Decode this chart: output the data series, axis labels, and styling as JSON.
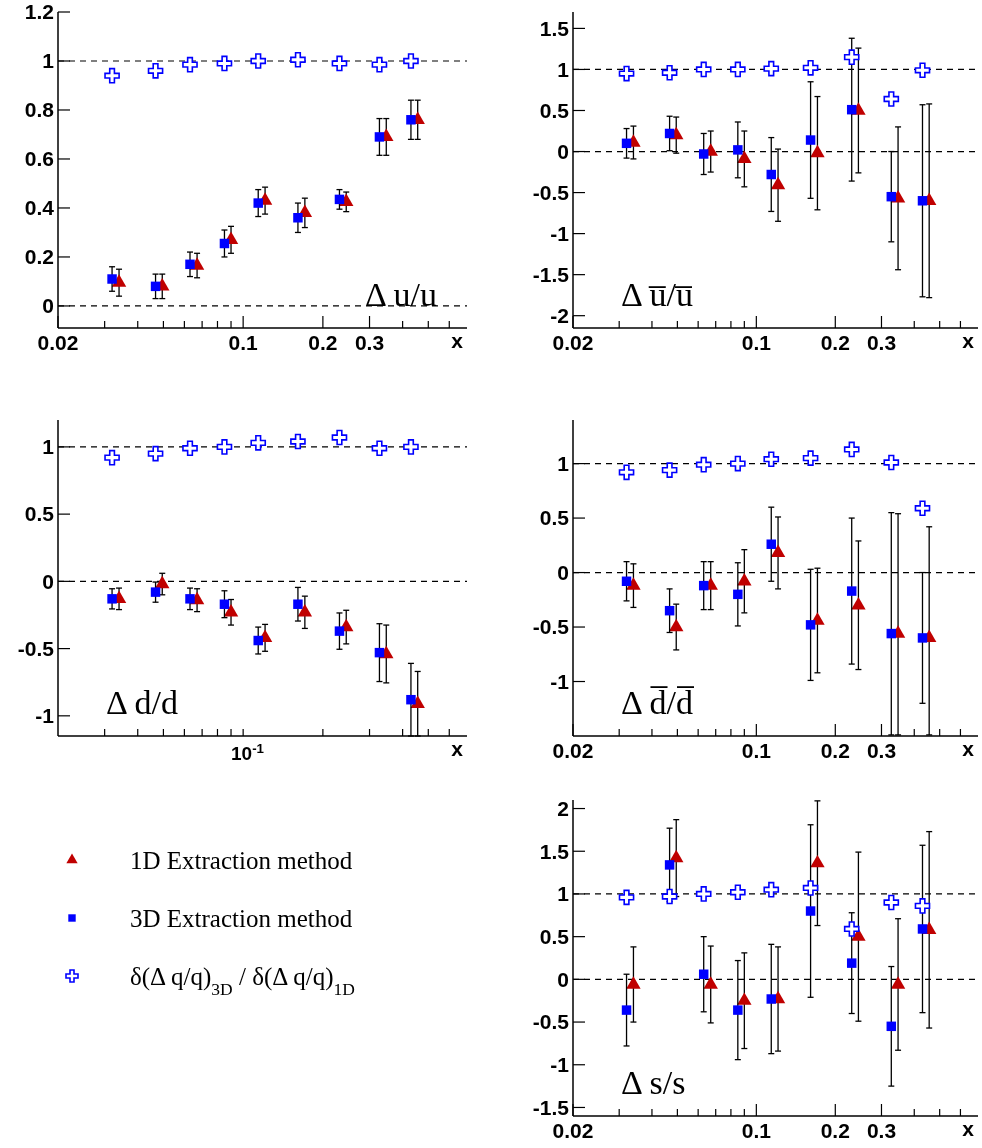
{
  "chart_data": [
    {
      "type": "scatter",
      "xlabel": "x",
      "log": "x",
      "xlim": [
        0.02,
        0.7
      ],
      "xticks": [
        0.02,
        {
          "value": 0.03,
          "label": null
        },
        {
          "value": 0.04,
          "label": null
        },
        {
          "value": 0.05,
          "label": null
        },
        {
          "value": 0.06,
          "label": null
        },
        {
          "value": 0.07,
          "label": null
        },
        {
          "value": 0.08,
          "label": null
        },
        {
          "value": 0.09,
          "label": null
        },
        0.1,
        0.2,
        0.3,
        {
          "value": 0.4,
          "label": null
        },
        {
          "value": 0.5,
          "label": null
        },
        {
          "value": 0.6,
          "label": null
        }
      ],
      "ylim": [
        -0.09,
        1.2
      ],
      "yticks": [
        0,
        0.2,
        0.4,
        0.6,
        0.8,
        1,
        1.2
      ],
      "ref_lines": [
        {
          "axis": "y",
          "value": 0,
          "line_style": "dashed"
        },
        {
          "axis": "y",
          "value": 1,
          "line_style": "dashed"
        }
      ],
      "annotations": [
        "Δ u/u"
      ],
      "series": [
        {
          "color": "#c00000",
          "marker": "triangle",
          "x": [
            0.034,
            0.0495,
            0.067,
            0.09,
            0.121,
            0.171,
            0.245,
            0.347,
            0.456
          ],
          "values": [
            0.095,
            0.08,
            0.165,
            0.27,
            0.43,
            0.38,
            0.425,
            0.69,
            0.76
          ],
          "errors": [
            0.055,
            0.05,
            0.05,
            0.055,
            0.055,
            0.06,
            0.04,
            0.075,
            0.08
          ]
        },
        {
          "color": "#0000ff",
          "marker": "square",
          "x": [
            0.032,
            0.0467,
            0.063,
            0.085,
            0.114,
            0.161,
            0.231,
            0.327,
            0.43
          ],
          "values": [
            0.11,
            0.08,
            0.17,
            0.255,
            0.42,
            0.36,
            0.435,
            0.69,
            0.76
          ],
          "errors": [
            0.05,
            0.05,
            0.05,
            0.055,
            0.055,
            0.06,
            0.04,
            0.075,
            0.08
          ]
        },
        {
          "color": "#0000ff",
          "marker": "cross",
          "x": [
            0.032,
            0.0467,
            0.063,
            0.085,
            0.114,
            0.161,
            0.231,
            0.327,
            0.43
          ],
          "values": [
            0.94,
            0.96,
            0.985,
            0.99,
            1.0,
            1.005,
            0.99,
            0.985,
            1.0
          ]
        }
      ]
    },
    {
      "type": "scatter",
      "xlabel": "x",
      "log": "x",
      "xlim": [
        0.02,
        0.7
      ],
      "xticks": [
        0.02,
        {
          "value": 0.03,
          "label": null
        },
        {
          "value": 0.04,
          "label": null
        },
        {
          "value": 0.05,
          "label": null
        },
        {
          "value": 0.06,
          "label": null
        },
        {
          "value": 0.07,
          "label": null
        },
        {
          "value": 0.08,
          "label": null
        },
        {
          "value": 0.09,
          "label": null
        },
        0.1,
        0.2,
        0.3,
        {
          "value": 0.4,
          "label": null
        },
        {
          "value": 0.5,
          "label": null
        },
        {
          "value": 0.6,
          "label": null
        }
      ],
      "ylim": [
        -2.15,
        1.7
      ],
      "yticks": [
        -2,
        -1.5,
        -1,
        -0.5,
        0,
        0.5,
        1,
        1.5
      ],
      "ref_lines": [
        {
          "axis": "y",
          "value": 0,
          "line_style": "dashed"
        },
        {
          "axis": "y",
          "value": 1,
          "line_style": "dashed"
        }
      ],
      "annotations": [
        "Δ u̅/u̅"
      ],
      "series": [
        {
          "color": "#c00000",
          "marker": "triangle",
          "x": [
            0.034,
            0.0495,
            0.067,
            0.09,
            0.121,
            0.171,
            0.245,
            0.347,
            0.456
          ],
          "values": [
            0.11,
            0.2,
            0.0,
            -0.09,
            -0.41,
            -0.02,
            0.5,
            -0.57,
            -0.6
          ],
          "errors": [
            0.2,
            0.22,
            0.25,
            0.34,
            0.44,
            0.69,
            0.76,
            0.87,
            1.18
          ]
        },
        {
          "color": "#0000ff",
          "marker": "square",
          "x": [
            0.032,
            0.0467,
            0.063,
            0.085,
            0.114,
            0.161,
            0.231,
            0.327,
            0.43
          ],
          "values": [
            0.1,
            0.22,
            -0.03,
            0.02,
            -0.28,
            0.14,
            0.51,
            -0.55,
            -0.6
          ],
          "errors": [
            0.18,
            0.21,
            0.25,
            0.34,
            0.45,
            0.71,
            0.87,
            0.55,
            1.17
          ]
        },
        {
          "color": "#0000ff",
          "marker": "cross",
          "x": [
            0.032,
            0.0467,
            0.063,
            0.085,
            0.114,
            0.161,
            0.231,
            0.327,
            0.43
          ],
          "values": [
            0.95,
            0.96,
            1.0,
            1.0,
            1.01,
            1.02,
            1.15,
            0.64,
            0.99
          ]
        }
      ]
    },
    {
      "type": "scatter",
      "xlabel": "x",
      "log": "x",
      "tick_labels": "y",
      "xlim": [
        0.02,
        0.7
      ],
      "xticks": [
        {
          "value": 0.03,
          "label": null
        },
        {
          "value": 0.04,
          "label": null
        },
        {
          "value": 0.05,
          "label": null
        },
        {
          "value": 0.06,
          "label": null
        },
        {
          "value": 0.07,
          "label": null
        },
        {
          "value": 0.08,
          "label": null
        },
        {
          "value": 0.09,
          "label": null
        },
        {
          "value": 0.1,
          "label": null
        },
        {
          "value": 0.2,
          "label": null
        },
        {
          "value": 0.3,
          "label": null
        },
        {
          "value": 0.4,
          "label": null
        },
        {
          "value": 0.5,
          "label": null
        },
        {
          "value": 0.6,
          "label": null
        }
      ],
      "ylim": [
        -1.15,
        1.2
      ],
      "yticks": [
        -1,
        -0.5,
        0,
        0.5,
        1
      ],
      "ref_lines": [
        {
          "axis": "y",
          "value": 0,
          "line_style": "dashed"
        },
        {
          "axis": "y",
          "value": 1,
          "line_style": "dashed"
        }
      ],
      "annotations": [
        "Δ d/d",
        "10$^{-1}$"
      ],
      "series": [
        {
          "color": "#c00000",
          "marker": "triangle",
          "x": [
            0.034,
            0.0495,
            0.067,
            0.09,
            0.121,
            0.171,
            0.245,
            0.347,
            0.456
          ],
          "values": [
            -0.13,
            -0.02,
            -0.14,
            -0.23,
            -0.42,
            -0.23,
            -0.34,
            -0.54,
            -0.91
          ],
          "errors": [
            0.08,
            0.08,
            0.085,
            0.095,
            0.1,
            0.12,
            0.125,
            0.215,
            0.24
          ]
        },
        {
          "color": "#0000ff",
          "marker": "square",
          "x": [
            0.032,
            0.0467,
            0.063,
            0.085,
            0.114,
            0.161,
            0.231,
            0.327,
            0.43
          ],
          "values": [
            -0.13,
            -0.08,
            -0.13,
            -0.17,
            -0.44,
            -0.17,
            -0.37,
            -0.53,
            -0.88
          ],
          "errors": [
            0.075,
            0.075,
            0.08,
            0.1,
            0.1,
            0.125,
            0.135,
            0.215,
            0.27
          ]
        },
        {
          "color": "#0000ff",
          "marker": "cross",
          "x": [
            0.032,
            0.0467,
            0.063,
            0.085,
            0.114,
            0.161,
            0.231,
            0.327,
            0.43
          ],
          "values": [
            0.92,
            0.95,
            0.99,
            1.0,
            1.03,
            1.04,
            1.07,
            0.99,
            1.0
          ]
        }
      ]
    },
    {
      "type": "scatter",
      "xlabel": "x",
      "log": "x",
      "xlim": [
        0.02,
        0.7
      ],
      "xticks": [
        0.02,
        {
          "value": 0.03,
          "label": null
        },
        {
          "value": 0.04,
          "label": null
        },
        {
          "value": 0.05,
          "label": null
        },
        {
          "value": 0.06,
          "label": null
        },
        {
          "value": 0.07,
          "label": null
        },
        {
          "value": 0.08,
          "label": null
        },
        {
          "value": 0.09,
          "label": null
        },
        0.1,
        0.2,
        0.3,
        {
          "value": 0.4,
          "label": null
        },
        {
          "value": 0.5,
          "label": null
        },
        {
          "value": 0.6,
          "label": null
        }
      ],
      "ylim": [
        -1.5,
        1.4
      ],
      "yticks": [
        -1,
        -0.5,
        0,
        0.5,
        1
      ],
      "ref_lines": [
        {
          "axis": "y",
          "value": 0,
          "line_style": "dashed"
        },
        {
          "axis": "y",
          "value": 1,
          "line_style": "dashed"
        }
      ],
      "annotations": [
        "Δ d̅/d̅"
      ],
      "series": [
        {
          "color": "#c00000",
          "marker": "triangle",
          "x": [
            0.034,
            0.0495,
            0.067,
            0.09,
            0.121,
            0.171,
            0.245,
            0.347,
            0.456
          ],
          "values": [
            -0.12,
            -0.5,
            -0.12,
            -0.08,
            0.18,
            -0.44,
            -0.3,
            -0.56,
            -0.6
          ],
          "errors": [
            0.2,
            0.21,
            0.22,
            0.29,
            0.33,
            0.48,
            0.59,
            [
              -1.49,
              0.54
            ],
            [
              -1.49,
              0.42
            ]
          ]
        },
        {
          "color": "#0000ff",
          "marker": "square",
          "x": [
            0.032,
            0.0467,
            0.063,
            0.085,
            0.114,
            0.161,
            0.231,
            0.327,
            0.43
          ],
          "values": [
            -0.08,
            -0.35,
            -0.12,
            -0.2,
            0.26,
            -0.48,
            -0.17,
            -0.56,
            -0.6
          ],
          "errors": [
            0.18,
            0.2,
            0.22,
            0.29,
            0.34,
            0.51,
            0.67,
            [
              -1.49,
              0.55
            ],
            0.6
          ]
        },
        {
          "color": "#0000ff",
          "marker": "cross",
          "x": [
            0.032,
            0.0467,
            0.063,
            0.085,
            0.114,
            0.161,
            0.231,
            0.327,
            0.43
          ],
          "values": [
            0.92,
            0.94,
            0.99,
            1.0,
            1.04,
            1.05,
            1.13,
            1.01,
            0.59
          ]
        }
      ]
    },
    {
      "type": "scatter",
      "xlabel": "x",
      "log": "x",
      "legend": "left",
      "xlim": [
        0.02,
        0.7
      ],
      "xticks": [
        0.02,
        {
          "value": 0.03,
          "label": null
        },
        {
          "value": 0.04,
          "label": null
        },
        {
          "value": 0.05,
          "label": null
        },
        {
          "value": 0.06,
          "label": null
        },
        {
          "value": 0.07,
          "label": null
        },
        {
          "value": 0.08,
          "label": null
        },
        {
          "value": 0.09,
          "label": null
        },
        0.1,
        0.2,
        0.3,
        {
          "value": 0.4,
          "label": null
        },
        {
          "value": 0.5,
          "label": null
        },
        {
          "value": 0.6,
          "label": null
        }
      ],
      "ylim": [
        -1.6,
        2.1
      ],
      "yticks": [
        -1.5,
        -1,
        -0.5,
        0,
        0.5,
        1,
        1.5,
        2
      ],
      "ref_lines": [
        {
          "axis": "y",
          "value": 0,
          "line_style": "dashed"
        },
        {
          "axis": "y",
          "value": 1,
          "line_style": "dashed"
        }
      ],
      "annotations": [
        "Δ s/s"
      ],
      "series": [
        {
          "name": "1D Extraction method",
          "color": "#c00000",
          "marker": "triangle",
          "x": [
            0.034,
            0.0495,
            0.067,
            0.09,
            0.121,
            0.171,
            0.245,
            0.347,
            0.456
          ],
          "values": [
            -0.06,
            1.42,
            -0.06,
            -0.25,
            -0.23,
            1.36,
            0.5,
            -0.06,
            0.58
          ],
          "errors": [
            0.44,
            0.45,
            0.45,
            0.56,
            0.61,
            0.73,
            0.99,
            0.77,
            1.15
          ]
        },
        {
          "name": "3D Extraction method",
          "color": "#0000ff",
          "marker": "square",
          "x": [
            0.032,
            0.0467,
            0.063,
            0.085,
            0.114,
            0.161,
            0.231,
            0.327,
            0.43
          ],
          "values": [
            -0.36,
            1.34,
            0.06,
            -0.36,
            -0.23,
            0.8,
            0.19,
            -0.55,
            0.59
          ],
          "errors": [
            0.42,
            0.43,
            0.44,
            0.58,
            0.64,
            1.01,
            0.59,
            0.7,
            0.98
          ]
        },
        {
          "name": "δ(Δ q/q)$_{3D}$ / δ(Δ q/q)$_{1D}$",
          "color": "#0000ff",
          "marker": "cross",
          "x": [
            0.032,
            0.0467,
            0.063,
            0.085,
            0.114,
            0.161,
            0.231,
            0.327,
            0.43
          ],
          "values": [
            0.96,
            0.97,
            1.0,
            1.02,
            1.05,
            1.07,
            0.59,
            0.9,
            0.86
          ]
        }
      ]
    }
  ]
}
